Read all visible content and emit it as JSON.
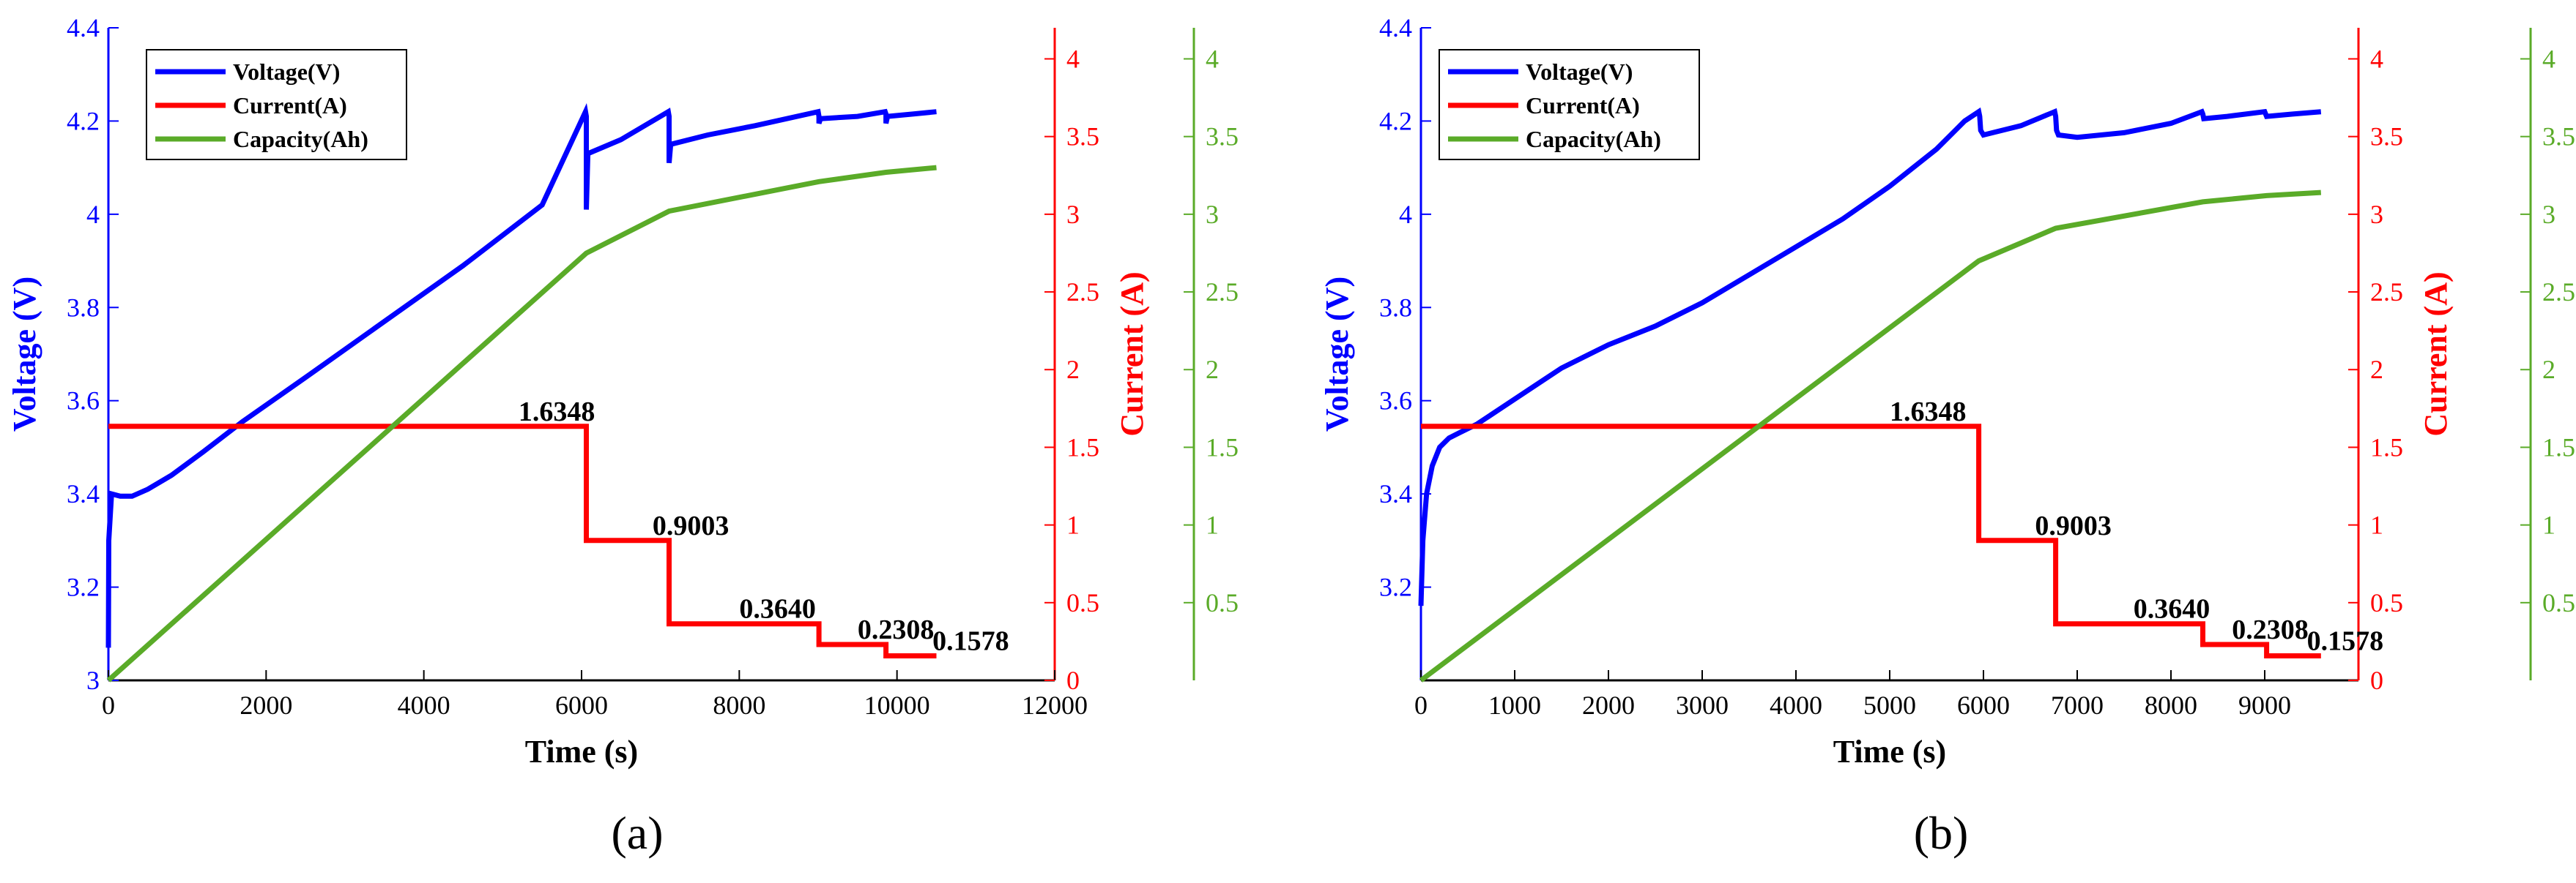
{
  "chart_data": [
    {
      "panel_label": "(a)",
      "type": "line",
      "xlabel": "Time (s)",
      "xlim": [
        0,
        12000
      ],
      "xticks": [
        0,
        2000,
        4000,
        6000,
        8000,
        10000,
        12000
      ],
      "ylabel_left": "Voltage (V)",
      "ylim_left": [
        3.0,
        4.4
      ],
      "yticks_left": [
        "3",
        "3.2",
        "3.4",
        "3.6",
        "3.8",
        "4",
        "4.2",
        "4.4"
      ],
      "yticks_left_values": [
        3.0,
        3.2,
        3.4,
        3.6,
        3.8,
        4.0,
        4.2,
        4.4
      ],
      "ylabel_right": "Current (A)",
      "ylim_right": [
        0,
        4.2
      ],
      "yticks_right": [
        "0",
        "0.5",
        "1",
        "1.5",
        "2",
        "2.5",
        "3",
        "3.5",
        "4"
      ],
      "yticks_right_values": [
        0,
        0.5,
        1,
        1.5,
        2,
        2.5,
        3,
        3.5,
        4
      ],
      "ylim_right2": [
        0,
        4.2
      ],
      "yticks_right2": [
        "0.5",
        "1",
        "1.5",
        "2",
        "2.5",
        "3",
        "3.5",
        "4"
      ],
      "yticks_right2_values": [
        0.5,
        1,
        1.5,
        2,
        2.5,
        3,
        3.5,
        4
      ],
      "legend": [
        "Voltage(V)",
        "Current(A)",
        "Capacity(Ah)"
      ],
      "legend_position": "top-left",
      "series": [
        {
          "name": "Voltage(V)",
          "axis": "left",
          "color": "#0000ff",
          "x": [
            0,
            5,
            40,
            150,
            300,
            500,
            800,
            1200,
            1700,
            2500,
            3500,
            4500,
            5500,
            6050,
            6060,
            6060,
            6080,
            6500,
            7100,
            7110,
            7110,
            7130,
            7600,
            8200,
            9000,
            9010,
            9010,
            9030,
            9500,
            9850,
            9860,
            9860,
            9880,
            10200,
            10500
          ],
          "y": [
            3.07,
            3.3,
            3.4,
            3.395,
            3.395,
            3.41,
            3.44,
            3.49,
            3.555,
            3.65,
            3.77,
            3.89,
            4.02,
            4.22,
            4.21,
            4.01,
            4.13,
            4.16,
            4.22,
            4.21,
            4.11,
            4.15,
            4.17,
            4.19,
            4.22,
            4.21,
            4.195,
            4.205,
            4.21,
            4.22,
            4.215,
            4.195,
            4.21,
            4.215,
            4.22
          ]
        },
        {
          "name": "Current(A)",
          "axis": "right",
          "color": "#ff0000",
          "x": [
            0,
            6060,
            6060,
            7110,
            7110,
            9010,
            9010,
            9860,
            9860,
            10500
          ],
          "y": [
            1.6348,
            1.6348,
            0.9003,
            0.9003,
            0.364,
            0.364,
            0.2308,
            0.2308,
            0.1578,
            0.1578
          ]
        },
        {
          "name": "Capacity(Ah)",
          "axis": "right2",
          "color": "#5aab28",
          "x": [
            0,
            6060,
            7110,
            9010,
            9860,
            10500
          ],
          "y": [
            0,
            2.75,
            3.02,
            3.21,
            3.27,
            3.3
          ]
        }
      ],
      "annotations": [
        "1.6348",
        "0.9003",
        "0.3640",
        "0.2308",
        "0.1578"
      ],
      "annotation_points": [
        [
          5200,
          1.6348
        ],
        [
          6900,
          0.9003
        ],
        [
          8000,
          0.364
        ],
        [
          9500,
          0.2308
        ],
        [
          10450,
          0.1578
        ]
      ]
    },
    {
      "panel_label": "(b)",
      "type": "line",
      "xlabel": "Time (s)",
      "xlim": [
        0,
        10000
      ],
      "xticks": [
        0,
        1000,
        2000,
        3000,
        4000,
        5000,
        6000,
        7000,
        8000,
        9000
      ],
      "ylabel_left": "Voltage (V)",
      "ylim_left": [
        3.0,
        4.4
      ],
      "yticks_left": [
        "3.2",
        "3.4",
        "3.6",
        "3.8",
        "4",
        "4.2",
        "4.4"
      ],
      "yticks_left_values": [
        3.2,
        3.4,
        3.6,
        3.8,
        4.0,
        4.2,
        4.4
      ],
      "ylabel_right": "Current (A)",
      "ylim_right": [
        0,
        4.2
      ],
      "yticks_right": [
        "0",
        "0.5",
        "1",
        "1.5",
        "2",
        "2.5",
        "3",
        "3.5",
        "4"
      ],
      "yticks_right_values": [
        0,
        0.5,
        1,
        1.5,
        2,
        2.5,
        3,
        3.5,
        4
      ],
      "ylim_right2": [
        0,
        4.2
      ],
      "yticks_right2": [
        "0.5",
        "1",
        "1.5",
        "2",
        "2.5",
        "3",
        "3.5",
        "4"
      ],
      "yticks_right2_values": [
        0.5,
        1,
        1.5,
        2,
        2.5,
        3,
        3.5,
        4
      ],
      "legend": [
        "Voltage(V)",
        "Current(A)",
        "Capacity(Ah)"
      ],
      "legend_position": "top-left",
      "series": [
        {
          "name": "Voltage(V)",
          "axis": "left",
          "color": "#0000ff",
          "x": [
            0,
            20,
            60,
            120,
            200,
            300,
            400,
            600,
            900,
            1200,
            1500,
            1700,
            2000,
            2500,
            3000,
            3500,
            4000,
            4500,
            5000,
            5500,
            5800,
            5950,
            5960,
            5970,
            6000,
            6400,
            6760,
            6770,
            6780,
            6800,
            7000,
            7500,
            8000,
            8330,
            8340,
            8350,
            8600,
            9000,
            9010,
            9020,
            9300,
            9600
          ],
          "y": [
            3.16,
            3.3,
            3.4,
            3.46,
            3.5,
            3.52,
            3.53,
            3.55,
            3.59,
            3.63,
            3.67,
            3.69,
            3.72,
            3.76,
            3.81,
            3.87,
            3.93,
            3.99,
            4.06,
            4.14,
            4.2,
            4.22,
            4.21,
            4.18,
            4.17,
            4.19,
            4.22,
            4.21,
            4.18,
            4.17,
            4.165,
            4.175,
            4.195,
            4.22,
            4.215,
            4.205,
            4.21,
            4.22,
            4.215,
            4.21,
            4.215,
            4.22
          ]
        },
        {
          "name": "Current(A)",
          "axis": "right",
          "color": "#ff0000",
          "x": [
            0,
            5950,
            5950,
            6770,
            6770,
            8340,
            8340,
            9020,
            9020,
            9600
          ],
          "y": [
            1.6348,
            1.6348,
            0.9003,
            0.9003,
            0.364,
            0.364,
            0.2308,
            0.2308,
            0.1578,
            0.1578
          ]
        },
        {
          "name": "Capacity(Ah)",
          "axis": "right2",
          "color": "#5aab28",
          "x": [
            0,
            5950,
            6770,
            8340,
            9020,
            9600
          ],
          "y": [
            0,
            2.7,
            2.91,
            3.08,
            3.12,
            3.14
          ]
        }
      ],
      "annotations": [
        "1.6348",
        "0.9003",
        "0.3640",
        "0.2308",
        "0.1578"
      ],
      "annotation_points": [
        [
          5000,
          1.6348
        ],
        [
          6550,
          0.9003
        ],
        [
          7600,
          0.364
        ],
        [
          8650,
          0.2308
        ],
        [
          9450,
          0.1578
        ]
      ]
    }
  ]
}
